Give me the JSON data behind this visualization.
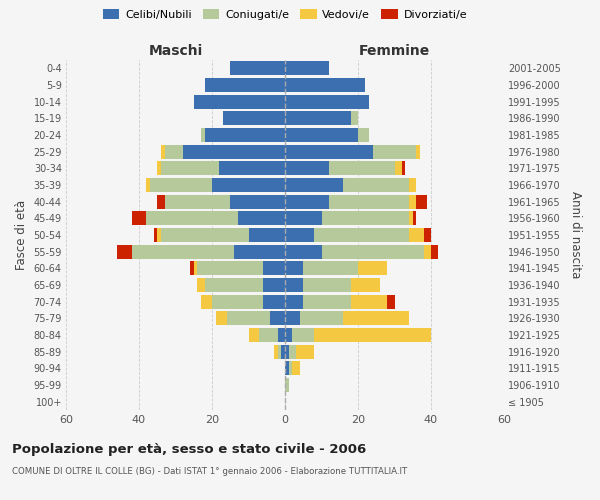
{
  "age_groups": [
    "100+",
    "95-99",
    "90-94",
    "85-89",
    "80-84",
    "75-79",
    "70-74",
    "65-69",
    "60-64",
    "55-59",
    "50-54",
    "45-49",
    "40-44",
    "35-39",
    "30-34",
    "25-29",
    "20-24",
    "15-19",
    "10-14",
    "5-9",
    "0-4"
  ],
  "birth_years": [
    "≤ 1905",
    "1906-1910",
    "1911-1915",
    "1916-1920",
    "1921-1925",
    "1926-1930",
    "1931-1935",
    "1936-1940",
    "1941-1945",
    "1946-1950",
    "1951-1955",
    "1956-1960",
    "1961-1965",
    "1966-1970",
    "1971-1975",
    "1976-1980",
    "1981-1985",
    "1986-1990",
    "1991-1995",
    "1996-2000",
    "2001-2005"
  ],
  "colors": {
    "celibe": "#3c6faf",
    "coniugato": "#b5c99a",
    "vedovo": "#f5c842",
    "divorziato": "#cc2200"
  },
  "maschi": {
    "celibe": [
      0,
      0,
      0,
      1,
      2,
      4,
      6,
      6,
      6,
      14,
      10,
      13,
      15,
      20,
      18,
      28,
      22,
      17,
      25,
      22,
      15
    ],
    "coniugato": [
      0,
      0,
      0,
      1,
      5,
      12,
      14,
      16,
      18,
      28,
      24,
      25,
      18,
      17,
      16,
      5,
      1,
      0,
      0,
      0,
      0
    ],
    "vedovo": [
      0,
      0,
      0,
      1,
      3,
      3,
      3,
      2,
      1,
      0,
      1,
      0,
      0,
      1,
      1,
      1,
      0,
      0,
      0,
      0,
      0
    ],
    "divorziato": [
      0,
      0,
      0,
      0,
      0,
      0,
      0,
      0,
      1,
      4,
      1,
      4,
      2,
      0,
      0,
      0,
      0,
      0,
      0,
      0,
      0
    ]
  },
  "femmine": {
    "nubile": [
      0,
      0,
      1,
      1,
      2,
      4,
      5,
      5,
      5,
      10,
      8,
      10,
      12,
      16,
      12,
      24,
      20,
      18,
      23,
      22,
      12
    ],
    "coniugata": [
      0,
      1,
      1,
      2,
      6,
      12,
      13,
      13,
      15,
      28,
      26,
      24,
      22,
      18,
      18,
      12,
      3,
      2,
      0,
      0,
      0
    ],
    "vedova": [
      0,
      0,
      2,
      5,
      32,
      18,
      10,
      8,
      8,
      2,
      4,
      1,
      2,
      2,
      2,
      1,
      0,
      0,
      0,
      0,
      0
    ],
    "divorziata": [
      0,
      0,
      0,
      0,
      0,
      0,
      2,
      0,
      0,
      2,
      2,
      1,
      3,
      0,
      1,
      0,
      0,
      0,
      0,
      0,
      0
    ]
  },
  "xlim": 60,
  "title": "Popolazione per età, sesso e stato civile - 2006",
  "subtitle": "COMUNE DI OLTRE IL COLLE (BG) - Dati ISTAT 1° gennaio 2006 - Elaborazione TUTTITALIA.IT",
  "ylabel_left": "Fasce di età",
  "ylabel_right": "Anni di nascita",
  "header_maschi": "Maschi",
  "header_femmine": "Femmine",
  "legend_labels": [
    "Celibi/Nubili",
    "Coniugati/e",
    "Vedovi/e",
    "Divorziati/e"
  ],
  "bg_color": "#f5f5f5",
  "bar_height": 0.85
}
